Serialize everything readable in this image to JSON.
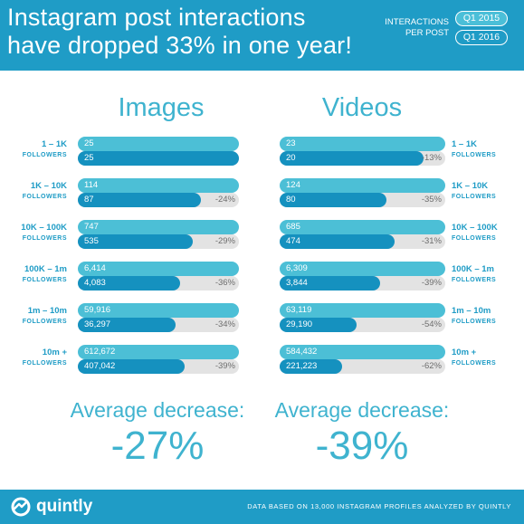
{
  "header": {
    "title_line1": "Instagram post interactions",
    "title_line2": "have dropped 33% in one year!",
    "legend_label_line1": "INTERACTIONS",
    "legend_label_line2": "PER POST",
    "legend_2015": "Q1 2015",
    "legend_2016": "Q1 2016"
  },
  "footer": {
    "logo_text": "quintly",
    "source": "DATA BASED ON 13,000 INSTAGRAM PROFILES ANALYZED BY QUINTLY"
  },
  "colors": {
    "brand": "#1f9cc6",
    "q1_2015": "#4cbfd6",
    "q1_2016": "#1591bf",
    "track": "#e3e3e3"
  },
  "chart_data": [
    {
      "type": "bar",
      "title": "Images",
      "categories": [
        {
          "label": "1 – 1K",
          "sub": "FOLLOWERS"
        },
        {
          "label": "1K – 10K",
          "sub": "FOLLOWERS"
        },
        {
          "label": "10K – 100K",
          "sub": "FOLLOWERS"
        },
        {
          "label": "100K – 1m",
          "sub": "FOLLOWERS"
        },
        {
          "label": "1m – 10m",
          "sub": "FOLLOWERS"
        },
        {
          "label": "10m +",
          "sub": "FOLLOWERS"
        }
      ],
      "series": [
        {
          "name": "Q1 2015",
          "labels": [
            "25",
            "114",
            "747",
            "6,414",
            "59,916",
            "612,672"
          ],
          "values": [
            25,
            114,
            747,
            6414,
            59916,
            612672
          ]
        },
        {
          "name": "Q1 2016",
          "labels": [
            "25",
            "87",
            "535",
            "4,083",
            "36,297",
            "407,042"
          ],
          "values": [
            25,
            87,
            535,
            4083,
            36297,
            407042
          ]
        }
      ],
      "change": [
        "",
        "-24%",
        "-29%",
        "-36%",
        "-34%",
        "-39%"
      ],
      "average_label": "Average decrease:",
      "average_value": "-27%"
    },
    {
      "type": "bar",
      "title": "Videos",
      "categories": [
        {
          "label": "1 – 1K",
          "sub": "FOLLOWERS"
        },
        {
          "label": "1K – 10K",
          "sub": "FOLLOWERS"
        },
        {
          "label": "10K – 100K",
          "sub": "FOLLOWERS"
        },
        {
          "label": "100K – 1m",
          "sub": "FOLLOWERS"
        },
        {
          "label": "1m – 10m",
          "sub": "FOLLOWERS"
        },
        {
          "label": "10m +",
          "sub": "FOLLOWERS"
        }
      ],
      "series": [
        {
          "name": "Q1 2015",
          "labels": [
            "23",
            "124",
            "685",
            "6,309",
            "63,119",
            "584,432"
          ],
          "values": [
            23,
            124,
            685,
            6309,
            63119,
            584432
          ]
        },
        {
          "name": "Q1 2016",
          "labels": [
            "20",
            "80",
            "474",
            "3,844",
            "29,190",
            "221,223"
          ],
          "values": [
            20,
            80,
            474,
            3844,
            29190,
            221223
          ]
        }
      ],
      "change": [
        "-13%",
        "-35%",
        "-31%",
        "-39%",
        "-54%",
        "-62%"
      ],
      "average_label": "Average decrease:",
      "average_value": "-39%"
    }
  ]
}
